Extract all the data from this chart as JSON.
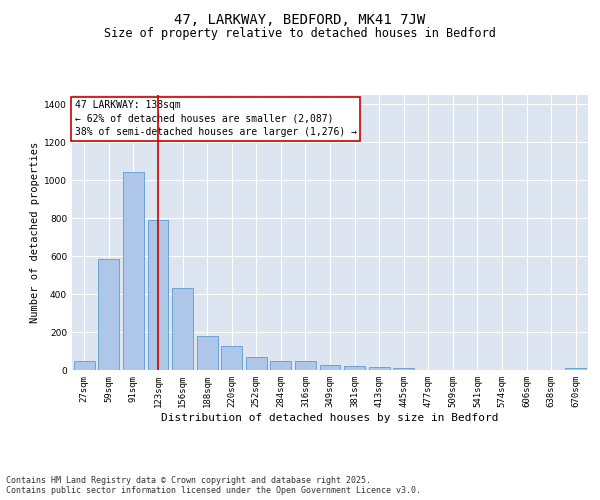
{
  "title1": "47, LARKWAY, BEDFORD, MK41 7JW",
  "title2": "Size of property relative to detached houses in Bedford",
  "xlabel": "Distribution of detached houses by size in Bedford",
  "ylabel": "Number of detached properties",
  "categories": [
    "27sqm",
    "59sqm",
    "91sqm",
    "123sqm",
    "156sqm",
    "188sqm",
    "220sqm",
    "252sqm",
    "284sqm",
    "316sqm",
    "349sqm",
    "381sqm",
    "413sqm",
    "445sqm",
    "477sqm",
    "509sqm",
    "541sqm",
    "574sqm",
    "606sqm",
    "638sqm",
    "670sqm"
  ],
  "values": [
    50,
    585,
    1045,
    790,
    430,
    180,
    125,
    70,
    50,
    50,
    25,
    20,
    15,
    10,
    0,
    0,
    0,
    0,
    0,
    0,
    10
  ],
  "bar_color": "#aec6e8",
  "bar_edge_color": "#5b9bd5",
  "vline_x": 3,
  "vline_color": "#cc0000",
  "annotation_text": "47 LARKWAY: 138sqm\n← 62% of detached houses are smaller (2,087)\n38% of semi-detached houses are larger (1,276) →",
  "annotation_box_color": "#ffffff",
  "annotation_box_edge_color": "#cc0000",
  "ylim": [
    0,
    1450
  ],
  "yticks": [
    0,
    200,
    400,
    600,
    800,
    1000,
    1200,
    1400
  ],
  "background_color": "#dde5f0",
  "grid_color": "#ffffff",
  "footer_text": "Contains HM Land Registry data © Crown copyright and database right 2025.\nContains public sector information licensed under the Open Government Licence v3.0.",
  "title_fontsize": 10,
  "subtitle_fontsize": 8.5,
  "axis_label_fontsize": 7.5,
  "tick_fontsize": 6.5,
  "annotation_fontsize": 7,
  "footer_fontsize": 6
}
